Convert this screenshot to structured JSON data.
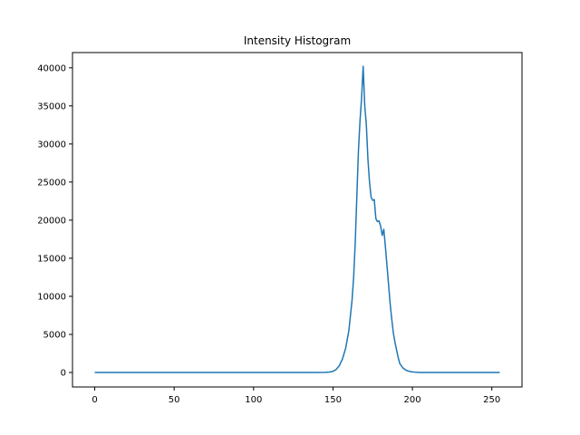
{
  "chart_data": {
    "type": "line",
    "title": "Intensity Histogram",
    "xlabel": "",
    "ylabel": "",
    "xlim": [
      -14,
      269
    ],
    "ylim": [
      -1900,
      42000
    ],
    "xticks": [
      0,
      50,
      100,
      150,
      200,
      250
    ],
    "yticks": [
      0,
      5000,
      10000,
      15000,
      20000,
      25000,
      30000,
      35000,
      40000
    ],
    "grid": false,
    "color": "#1f77b4",
    "series": [
      {
        "x": [
          0,
          50,
          100,
          140,
          145,
          148,
          150,
          152,
          154,
          156,
          158,
          160,
          162,
          163,
          164,
          165,
          166,
          167,
          168,
          169,
          170,
          171,
          172,
          173,
          174,
          175,
          176,
          177,
          178,
          179,
          180,
          181,
          182,
          183,
          184,
          185,
          186,
          187,
          188,
          189,
          190,
          191,
          192,
          194,
          196,
          198,
          200,
          202,
          205,
          210,
          220,
          255
        ],
        "y": [
          0,
          0,
          0,
          0,
          20,
          60,
          150,
          400,
          900,
          1800,
          3200,
          5500,
          9500,
          12500,
          17000,
          23000,
          29000,
          33000,
          36000,
          40200,
          35000,
          32500,
          28000,
          25000,
          23000,
          22600,
          22700,
          20200,
          19800,
          19900,
          19200,
          18000,
          18800,
          16500,
          14000,
          11500,
          9000,
          7000,
          5200,
          4000,
          3000,
          2000,
          1200,
          600,
          300,
          150,
          80,
          40,
          10,
          5,
          0,
          0
        ]
      }
    ]
  }
}
